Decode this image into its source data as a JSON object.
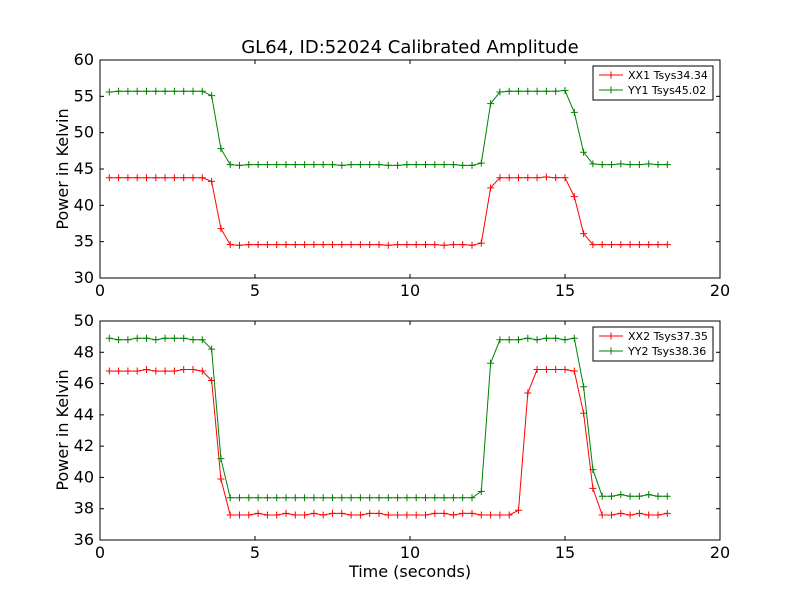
{
  "chart_data": [
    {
      "type": "line",
      "title": "GL64, ID:52024 Calibrated Amplitude",
      "xlabel": "",
      "ylabel": "Power in Kelvin",
      "xlim": [
        0,
        20
      ],
      "ylim": [
        30,
        60
      ],
      "xticks": [
        "0",
        "5",
        "10",
        "15",
        "20"
      ],
      "yticks": [
        "30",
        "35",
        "40",
        "45",
        "50",
        "55",
        "60"
      ],
      "legend_position": "top-right",
      "grid": false,
      "series": [
        {
          "name": "XX1 Tsys34.34",
          "color": "#ff0000",
          "x": [
            0.3,
            0.6,
            0.9,
            1.2,
            1.5,
            1.8,
            2.1,
            2.4,
            2.7,
            3.0,
            3.3,
            3.6,
            3.9,
            4.2,
            4.5,
            4.8,
            5.1,
            5.4,
            5.7,
            6.0,
            6.3,
            6.6,
            6.9,
            7.2,
            7.5,
            7.8,
            8.1,
            8.4,
            8.7,
            9.0,
            9.3,
            9.6,
            9.9,
            10.2,
            10.5,
            10.8,
            11.1,
            11.4,
            11.7,
            12.0,
            12.3,
            12.6,
            12.9,
            13.2,
            13.5,
            13.8,
            14.1,
            14.4,
            14.7,
            15.0,
            15.3,
            15.6,
            15.9,
            16.2,
            16.5,
            16.8,
            17.1,
            17.4,
            17.7,
            18.0,
            18.3
          ],
          "y": [
            43.8,
            43.8,
            43.8,
            43.8,
            43.8,
            43.8,
            43.8,
            43.8,
            43.8,
            43.8,
            43.8,
            43.3,
            36.8,
            34.6,
            34.5,
            34.6,
            34.6,
            34.6,
            34.6,
            34.6,
            34.6,
            34.6,
            34.6,
            34.6,
            34.6,
            34.6,
            34.6,
            34.6,
            34.6,
            34.6,
            34.5,
            34.6,
            34.6,
            34.6,
            34.6,
            34.6,
            34.5,
            34.6,
            34.6,
            34.5,
            34.8,
            42.4,
            43.8,
            43.8,
            43.8,
            43.8,
            43.8,
            43.9,
            43.8,
            43.8,
            41.2,
            36.1,
            34.6,
            34.6,
            34.6,
            34.6,
            34.6,
            34.6,
            34.6,
            34.6,
            34.6
          ]
        },
        {
          "name": "YY1 Tsys45.02",
          "color": "#008000",
          "x": [
            0.3,
            0.6,
            0.9,
            1.2,
            1.5,
            1.8,
            2.1,
            2.4,
            2.7,
            3.0,
            3.3,
            3.6,
            3.9,
            4.2,
            4.5,
            4.8,
            5.1,
            5.4,
            5.7,
            6.0,
            6.3,
            6.6,
            6.9,
            7.2,
            7.5,
            7.8,
            8.1,
            8.4,
            8.7,
            9.0,
            9.3,
            9.6,
            9.9,
            10.2,
            10.5,
            10.8,
            11.1,
            11.4,
            11.7,
            12.0,
            12.3,
            12.6,
            12.9,
            13.2,
            13.5,
            13.8,
            14.1,
            14.4,
            14.7,
            15.0,
            15.3,
            15.6,
            15.9,
            16.2,
            16.5,
            16.8,
            17.1,
            17.4,
            17.7,
            18.0,
            18.3
          ],
          "y": [
            55.6,
            55.7,
            55.7,
            55.7,
            55.7,
            55.7,
            55.7,
            55.7,
            55.7,
            55.7,
            55.7,
            55.1,
            47.8,
            45.6,
            45.5,
            45.6,
            45.6,
            45.6,
            45.6,
            45.6,
            45.6,
            45.6,
            45.6,
            45.6,
            45.6,
            45.5,
            45.6,
            45.6,
            45.6,
            45.6,
            45.5,
            45.5,
            45.6,
            45.6,
            45.6,
            45.6,
            45.6,
            45.6,
            45.5,
            45.5,
            45.8,
            54.0,
            55.6,
            55.7,
            55.7,
            55.7,
            55.7,
            55.7,
            55.7,
            55.8,
            52.8,
            47.3,
            45.7,
            45.6,
            45.6,
            45.7,
            45.6,
            45.6,
            45.7,
            45.6,
            45.6
          ]
        }
      ]
    },
    {
      "type": "line",
      "title": "",
      "xlabel": "Time (seconds)",
      "ylabel": "Power in Kelvin",
      "xlim": [
        0,
        20
      ],
      "ylim": [
        36,
        50
      ],
      "xticks": [
        "0",
        "5",
        "10",
        "15",
        "20"
      ],
      "yticks": [
        "36",
        "38",
        "40",
        "42",
        "44",
        "46",
        "48",
        "50"
      ],
      "legend_position": "top-right",
      "grid": false,
      "series": [
        {
          "name": "XX2 Tsys37.35",
          "color": "#ff0000",
          "x": [
            0.3,
            0.6,
            0.9,
            1.2,
            1.5,
            1.8,
            2.1,
            2.4,
            2.7,
            3.0,
            3.3,
            3.6,
            3.9,
            4.2,
            4.5,
            4.8,
            5.1,
            5.4,
            5.7,
            6.0,
            6.3,
            6.6,
            6.9,
            7.2,
            7.5,
            7.8,
            8.1,
            8.4,
            8.7,
            9.0,
            9.3,
            9.6,
            9.9,
            10.2,
            10.5,
            10.8,
            11.1,
            11.4,
            11.7,
            12.0,
            12.3,
            12.6,
            12.9,
            13.2,
            13.5,
            13.8,
            14.1,
            14.4,
            14.7,
            15.0,
            15.3,
            15.6,
            15.9,
            16.2,
            16.5,
            16.8,
            17.1,
            17.4,
            17.7,
            18.0,
            18.3
          ],
          "y": [
            46.8,
            46.8,
            46.8,
            46.8,
            46.9,
            46.8,
            46.8,
            46.8,
            46.9,
            46.9,
            46.8,
            46.2,
            39.9,
            37.6,
            37.6,
            37.6,
            37.7,
            37.6,
            37.6,
            37.7,
            37.6,
            37.6,
            37.7,
            37.6,
            37.7,
            37.7,
            37.6,
            37.6,
            37.7,
            37.7,
            37.6,
            37.6,
            37.6,
            37.6,
            37.6,
            37.7,
            37.7,
            37.6,
            37.7,
            37.7,
            37.6,
            37.6,
            37.6,
            37.6,
            37.9,
            45.4,
            46.9,
            46.9,
            46.9,
            46.9,
            46.8,
            44.1,
            39.3,
            37.6,
            37.6,
            37.7,
            37.6,
            37.7,
            37.6,
            37.6,
            37.7
          ]
        },
        {
          "name": "YY2 Tsys38.36",
          "color": "#008000",
          "x": [
            0.3,
            0.6,
            0.9,
            1.2,
            1.5,
            1.8,
            2.1,
            2.4,
            2.7,
            3.0,
            3.3,
            3.6,
            3.9,
            4.2,
            4.5,
            4.8,
            5.1,
            5.4,
            5.7,
            6.0,
            6.3,
            6.6,
            6.9,
            7.2,
            7.5,
            7.8,
            8.1,
            8.4,
            8.7,
            9.0,
            9.3,
            9.6,
            9.9,
            10.2,
            10.5,
            10.8,
            11.1,
            11.4,
            11.7,
            12.0,
            12.3,
            12.6,
            12.9,
            13.2,
            13.5,
            13.8,
            14.1,
            14.4,
            14.7,
            15.0,
            15.3,
            15.6,
            15.9,
            16.2,
            16.5,
            16.8,
            17.1,
            17.4,
            17.7,
            18.0,
            18.3
          ],
          "y": [
            48.9,
            48.8,
            48.8,
            48.9,
            48.9,
            48.8,
            48.9,
            48.9,
            48.9,
            48.8,
            48.8,
            48.2,
            41.2,
            38.7,
            38.7,
            38.7,
            38.7,
            38.7,
            38.7,
            38.7,
            38.7,
            38.7,
            38.7,
            38.7,
            38.7,
            38.7,
            38.7,
            38.7,
            38.7,
            38.7,
            38.7,
            38.7,
            38.7,
            38.7,
            38.7,
            38.7,
            38.7,
            38.7,
            38.7,
            38.7,
            39.1,
            47.3,
            48.8,
            48.8,
            48.8,
            48.9,
            48.8,
            48.9,
            48.9,
            48.8,
            48.9,
            45.8,
            40.5,
            38.8,
            38.8,
            38.9,
            38.8,
            38.8,
            38.9,
            38.8,
            38.8
          ]
        }
      ]
    }
  ]
}
